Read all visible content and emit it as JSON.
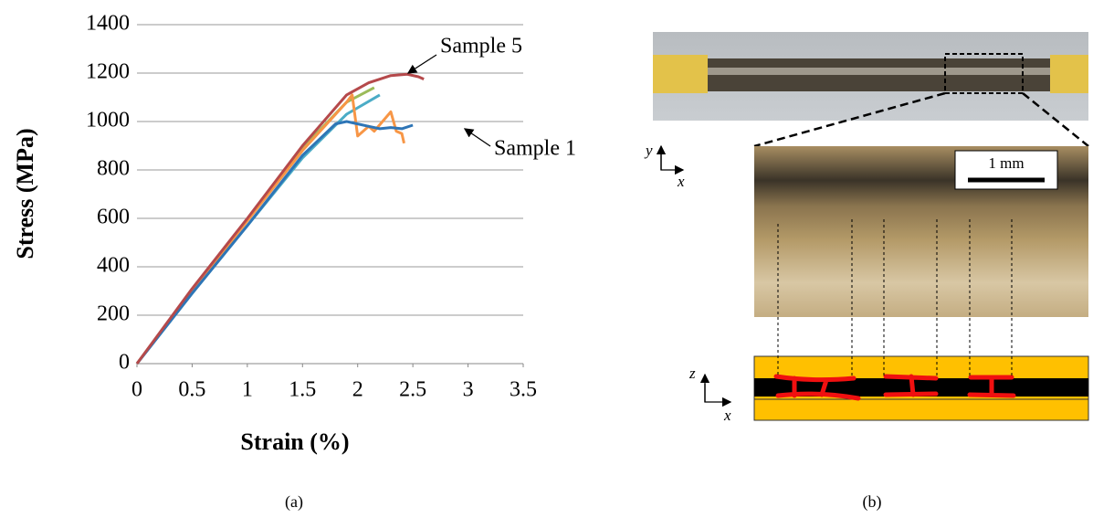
{
  "chart_data": {
    "type": "line",
    "xlabel": "Strain (%)",
    "ylabel": "Stress (MPa)",
    "xlim": [
      0,
      3.5
    ],
    "xticks": [
      0,
      0.5,
      1,
      1.5,
      2,
      2.5,
      3,
      3.5
    ],
    "ylim": [
      0,
      1400
    ],
    "yticks": [
      0,
      200,
      400,
      600,
      800,
      1000,
      1200,
      1400
    ],
    "grid": true,
    "annotations": [
      "Sample 5",
      "Sample 1"
    ],
    "series": [
      {
        "color": "#4bacc6",
        "x": [
          0,
          0.5,
          1,
          1.5,
          1.9,
          2.2
        ],
        "values": [
          0,
          290,
          570,
          850,
          1030,
          1110
        ]
      },
      {
        "color": "#9bbb59",
        "x": [
          0,
          0.5,
          1,
          1.5,
          1.9,
          2.15
        ],
        "values": [
          0,
          305,
          595,
          890,
          1080,
          1140
        ]
      },
      {
        "color": "#f79646",
        "x": [
          0,
          0.5,
          1,
          1.5,
          1.9,
          1.95,
          2.0,
          2.1,
          2.15,
          2.3,
          2.35,
          2.4,
          2.42
        ],
        "values": [
          0,
          300,
          590,
          880,
          1080,
          1110,
          940,
          980,
          960,
          1040,
          960,
          950,
          910
        ]
      },
      {
        "color": "#2e75b6",
        "x": [
          0,
          0.5,
          1,
          1.5,
          1.8,
          1.9,
          2.0,
          2.1,
          2.2,
          2.3,
          2.4,
          2.5
        ],
        "values": [
          0,
          290,
          570,
          860,
          990,
          1000,
          990,
          980,
          970,
          975,
          970,
          985
        ]
      },
      {
        "color": "#b5494b",
        "x": [
          0,
          0.5,
          1,
          1.5,
          1.9,
          2.1,
          2.3,
          2.45,
          2.55,
          2.6
        ],
        "values": [
          0,
          310,
          600,
          900,
          1110,
          1160,
          1190,
          1195,
          1185,
          1175
        ]
      }
    ]
  },
  "panel_b": {
    "scale_label": "1 mm",
    "axes_top": [
      "y",
      "x"
    ],
    "axes_bottom": [
      "z",
      "x"
    ]
  },
  "captions": [
    "(a)",
    "(b)"
  ]
}
